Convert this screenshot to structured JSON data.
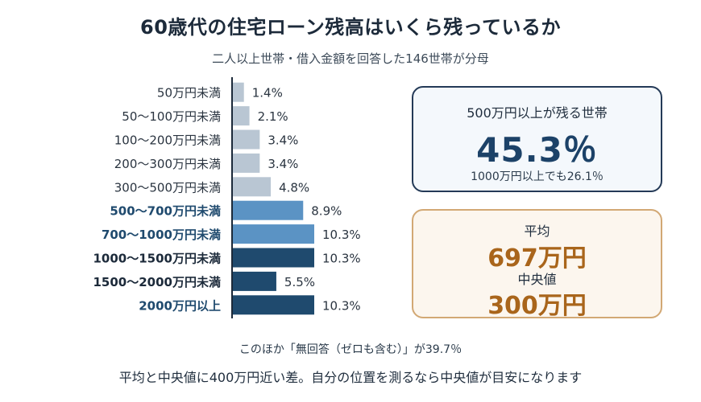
{
  "header": {
    "title": "60歳代の住宅ローン残高はいくら残っているか",
    "subtitle": "二人以上世帯・借入金額を回答した146世帯が分母"
  },
  "chart_data": {
    "type": "bar",
    "orientation": "horizontal",
    "title": "60歳代の住宅ローン残高はいくら残っているか",
    "subtitle": "二人以上世帯・借入金額を回答した146世帯が分母",
    "categories": [
      "50万円未満",
      "50〜100万円未満",
      "100〜200万円未満",
      "200〜300万円未満",
      "300〜500万円未満",
      "500〜700万円未満",
      "700〜1000万円未満",
      "1000〜1500万円未満",
      "1500〜2000万円未満",
      "2000万円以上"
    ],
    "values": [
      1.4,
      2.1,
      3.4,
      3.4,
      4.8,
      8.9,
      10.3,
      10.3,
      5.5,
      10.3
    ],
    "data_labels": [
      "1.4%",
      "2.1%",
      "3.4%",
      "3.4%",
      "4.8%",
      "8.9%",
      "10.3%",
      "10.3%",
      "5.5%",
      "10.3%"
    ],
    "bar_colors": [
      "#b9c6d3",
      "#b9c6d3",
      "#b9c6d3",
      "#b9c6d3",
      "#b9c6d3",
      "#5b93c4",
      "#5b93c4",
      "#1f4a6e",
      "#1f4a6e",
      "#1f4a6e"
    ],
    "label_bold": [
      false,
      false,
      false,
      false,
      false,
      true,
      true,
      true,
      true,
      true
    ],
    "label_colors": [
      "#2a3440",
      "#2a3440",
      "#2a3440",
      "#2a3440",
      "#2a3440",
      "#1f4a6e",
      "#1f4a6e",
      "#1c2a3a",
      "#1c2a3a",
      "#1f4a6e"
    ],
    "xlim": [
      0,
      10.3
    ],
    "unit": "%",
    "grid": false,
    "legend": "none"
  },
  "summary_blue": {
    "label": "500万円以上が残る世帯",
    "value": "45.3％",
    "sub": "1000万円以上でも26.1％"
  },
  "summary_orange": {
    "mean_label": "平均",
    "mean_value": "697万円",
    "median_label": "中央値",
    "median_value": "300万円"
  },
  "footer": {
    "note": "このほか「無回答（ゼロも含む）」が39.7％",
    "conclusion": "平均と中央値に400万円近い差。自分の位置を測るなら中央値が目安になります"
  },
  "colors": {
    "accent_blue": "#1c4268",
    "accent_orange": "#a9651b"
  }
}
